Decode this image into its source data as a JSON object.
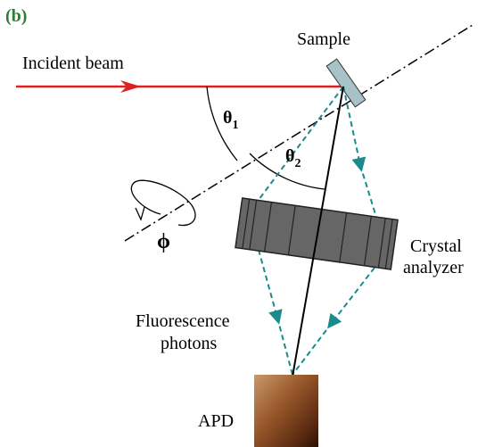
{
  "panel_label": "(b)",
  "labels": {
    "sample": "Sample",
    "incident_beam": "Incident beam",
    "theta1": {
      "symbol": "θ",
      "subscript": "1"
    },
    "theta2": {
      "symbol": "θ",
      "subscript": "2"
    },
    "phi": "ϕ",
    "crystal_analyzer": [
      "Crystal",
      "analyzer"
    ],
    "fluorescence_photons": [
      "Fluorescence",
      "photons"
    ],
    "apd": "APD"
  }
}
